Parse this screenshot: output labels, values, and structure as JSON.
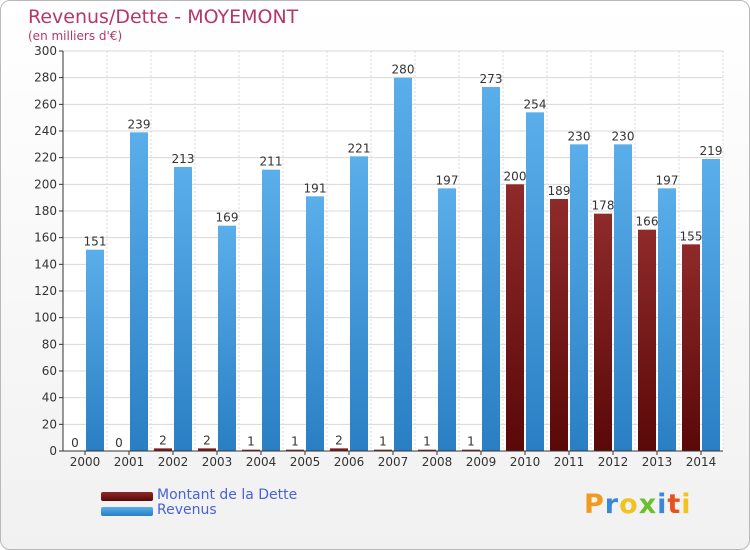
{
  "title": "Revenus/Dette - MOYEMONT",
  "subtitle": "(en milliers d'€)",
  "chart_data": {
    "type": "bar",
    "categories": [
      "2000",
      "2001",
      "2002",
      "2003",
      "2004",
      "2005",
      "2006",
      "2007",
      "2008",
      "2009",
      "2010",
      "2011",
      "2012",
      "2013",
      "2014"
    ],
    "series": [
      {
        "name": "Montant de la Dette",
        "color": "#7a1a1a",
        "values": [
          0,
          0,
          2,
          2,
          1,
          1,
          2,
          1,
          1,
          1,
          200,
          189,
          178,
          166,
          155
        ]
      },
      {
        "name": "Revenus",
        "color": "#4fa3e6",
        "values": [
          151,
          239,
          213,
          169,
          211,
          191,
          221,
          280,
          197,
          273,
          254,
          230,
          230,
          197,
          219
        ]
      }
    ],
    "yticks": [
      "0",
      "20",
      "40",
      "60",
      "80",
      "100",
      "120",
      "140",
      "160",
      "180",
      "200",
      "220",
      "240",
      "260",
      "280",
      "300"
    ],
    "ylim": [
      0,
      300
    ],
    "grid": true,
    "legend_position": "bottom-left"
  },
  "logo": {
    "letters": [
      "P",
      "r",
      "o",
      "x",
      "i",
      "t",
      "i"
    ],
    "colors": [
      "#f29a1f",
      "#3a88d8",
      "#f2c21f",
      "#6cbf2c",
      "#3a88d8",
      "#e8501c",
      "#f2c21f"
    ]
  }
}
